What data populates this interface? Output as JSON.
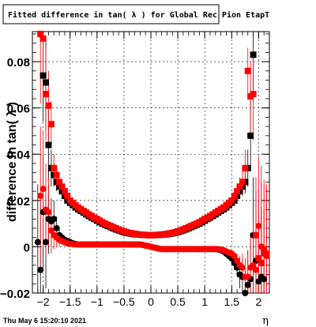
{
  "title": "Fitted difference in tan( λ ) for Global Rec Pion EtapT",
  "footer_timestamp": "Thu May  6 15:20:10 2021",
  "chart_data": {
    "type": "scatter",
    "title": "Fitted difference in tan( λ ) for Global Rec Pion EtapT",
    "xlabel": "η",
    "ylabel": "difference in tan( λ )",
    "xlim": [
      -2.2,
      2.2
    ],
    "ylim": [
      -0.02,
      0.093
    ],
    "grid": true,
    "x_ticks": [
      -2,
      -1.5,
      -1,
      -0.5,
      0,
      0.5,
      1,
      1.5,
      2
    ],
    "x_tick_labels": [
      "−2",
      "−1.5",
      "−1",
      "−0.5",
      "0",
      "0.5",
      "1",
      "1.5",
      "2"
    ],
    "y_ticks": [
      -0.02,
      0,
      0.02,
      0.04,
      0.06,
      0.08
    ],
    "y_tick_labels": [
      "−0.02",
      "0",
      "0.02",
      "0.04",
      "0.06",
      "0.08"
    ],
    "series": [
      {
        "color": "#000000",
        "marker": "circle",
        "x": [
          -2.1,
          -2.05,
          -2.0,
          -1.95,
          -1.9,
          -1.85,
          -1.8,
          -1.75,
          -1.7,
          -1.65,
          -1.6,
          -1.55,
          -1.5,
          -1.45,
          -1.4,
          -1.35,
          -1.3,
          -1.25,
          -1.2,
          -1.15,
          -1.1,
          -1.05,
          -1.0,
          -0.95,
          -0.9,
          -0.85,
          -0.8,
          -0.75,
          -0.7,
          -0.65,
          -0.6,
          -0.55,
          -0.5,
          -0.45,
          -0.4,
          -0.35,
          -0.3,
          -0.25,
          -0.2,
          -0.15,
          -0.1,
          -0.05,
          0.0,
          0.05,
          0.1,
          0.15,
          0.2,
          0.25,
          0.3,
          0.35,
          0.4,
          0.45,
          0.5,
          0.55,
          0.6,
          0.65,
          0.7,
          0.75,
          0.8,
          0.85,
          0.9,
          0.95,
          1.0,
          1.05,
          1.1,
          1.15,
          1.2,
          1.25,
          1.3,
          1.35,
          1.4,
          1.45,
          1.5,
          1.55,
          1.6,
          1.65,
          1.7,
          1.75,
          1.8,
          1.85,
          1.9,
          1.95,
          2.0,
          2.05,
          2.1
        ],
        "y": [
          0.002,
          -0.01,
          0.015,
          0.002,
          0.012,
          0.011,
          0.012,
          0.008,
          0.005,
          0.004,
          0.003,
          0.0025,
          0.002,
          0.0015,
          0.0012,
          0.001,
          0.001,
          0.001,
          0.001,
          0.001,
          0.001,
          0.001,
          0.001,
          0.001,
          0.001,
          0.001,
          0.001,
          0.001,
          0.001,
          0.001,
          0.001,
          0.001,
          0.001,
          0.001,
          0.001,
          0.001,
          0.001,
          0.001,
          0.001,
          0.0008,
          0.0005,
          0.0003,
          0.0,
          -0.0003,
          -0.0005,
          -0.0008,
          -0.001,
          -0.001,
          -0.001,
          -0.001,
          -0.001,
          -0.001,
          -0.001,
          -0.001,
          -0.001,
          -0.001,
          -0.001,
          -0.001,
          -0.001,
          -0.001,
          -0.001,
          -0.001,
          -0.001,
          -0.001,
          -0.001,
          -0.001,
          -0.001,
          -0.0012,
          -0.0015,
          -0.002,
          -0.003,
          -0.004,
          -0.005,
          -0.007,
          -0.009,
          -0.012,
          -0.013,
          -0.02,
          -0.0165,
          -0.014,
          0.005,
          -0.006,
          -0.015,
          -0.013,
          -0.014
        ],
        "yerr": [
          0.025,
          0.03,
          0.025,
          0.02,
          0.015,
          0.01,
          0.008,
          0.005,
          0.003,
          0.002,
          0.0015,
          0.001,
          0.001,
          0.001,
          0.001,
          0.001,
          0.001,
          0.001,
          0.001,
          0.001,
          0.001,
          0.001,
          0.001,
          0.001,
          0.001,
          0.001,
          0.001,
          0.001,
          0.001,
          0.001,
          0.001,
          0.001,
          0.001,
          0.001,
          0.001,
          0.001,
          0.001,
          0.001,
          0.001,
          0.001,
          0.001,
          0.001,
          0.001,
          0.001,
          0.001,
          0.001,
          0.001,
          0.001,
          0.001,
          0.001,
          0.001,
          0.001,
          0.001,
          0.001,
          0.001,
          0.001,
          0.001,
          0.001,
          0.001,
          0.001,
          0.001,
          0.001,
          0.001,
          0.001,
          0.001,
          0.001,
          0.001,
          0.001,
          0.001,
          0.001,
          0.001,
          0.0015,
          0.002,
          0.003,
          0.004,
          0.006,
          0.008,
          0.01,
          0.015,
          0.02,
          0.025,
          0.03,
          0.035,
          0.03,
          0.03
        ]
      },
      {
        "color": "#000000",
        "marker": "square",
        "x": [
          -2.0,
          -1.95,
          -1.9,
          -1.85,
          -1.8,
          -1.75,
          -1.7,
          -1.65,
          -1.6,
          -1.55,
          -1.5,
          -1.45,
          -1.4,
          -1.35,
          -1.3,
          -1.25,
          -1.2,
          -1.15,
          -1.1,
          -1.05,
          -1.0,
          -0.95,
          -0.9,
          -0.85,
          -0.8,
          -0.75,
          -0.7,
          -0.65,
          -0.6,
          -0.55,
          -0.5,
          -0.45,
          -0.4,
          -0.35,
          -0.3,
          -0.25,
          -0.2,
          -0.15,
          -0.1,
          -0.05,
          0.0,
          0.05,
          0.1,
          0.15,
          0.2,
          0.25,
          0.3,
          0.35,
          0.4,
          0.45,
          0.5,
          0.55,
          0.6,
          0.65,
          0.7,
          0.75,
          0.8,
          0.85,
          0.9,
          0.95,
          1.0,
          1.05,
          1.1,
          1.15,
          1.2,
          1.25,
          1.3,
          1.35,
          1.4,
          1.45,
          1.5,
          1.55,
          1.6,
          1.65,
          1.7,
          1.75,
          1.8,
          1.85,
          1.9
        ],
        "y": [
          0.074,
          0.071,
          0.044,
          0.034,
          0.031,
          0.028,
          0.026,
          0.024,
          0.022,
          0.02,
          0.019,
          0.018,
          0.017,
          0.0162,
          0.0155,
          0.0148,
          0.014,
          0.0133,
          0.0126,
          0.012,
          0.0113,
          0.0106,
          0.01,
          0.0095,
          0.009,
          0.0085,
          0.008,
          0.0075,
          0.0071,
          0.0067,
          0.0063,
          0.006,
          0.0058,
          0.0056,
          0.0054,
          0.0053,
          0.0052,
          0.0051,
          0.0051,
          0.005,
          0.005,
          0.005,
          0.0051,
          0.0051,
          0.0052,
          0.0053,
          0.0054,
          0.0056,
          0.0058,
          0.006,
          0.0063,
          0.0067,
          0.0071,
          0.0075,
          0.008,
          0.0085,
          0.009,
          0.0095,
          0.01,
          0.0106,
          0.0113,
          0.012,
          0.0126,
          0.0133,
          0.014,
          0.0148,
          0.0155,
          0.0162,
          0.017,
          0.018,
          0.019,
          0.02,
          0.022,
          0.024,
          0.026,
          0.028,
          0.034,
          0.048,
          0.083
        ],
        "yerr": [
          0.02,
          0.02,
          0.015,
          0.008,
          0.005,
          0.004,
          0.003,
          0.002,
          0.0015,
          0.001,
          0.001,
          0.001,
          0.001,
          0.001,
          0.001,
          0.001,
          0.001,
          0.001,
          0.001,
          0.001,
          0.001,
          0.001,
          0.001,
          0.001,
          0.001,
          0.001,
          0.001,
          0.001,
          0.001,
          0.001,
          0.001,
          0.001,
          0.001,
          0.001,
          0.001,
          0.001,
          0.001,
          0.001,
          0.001,
          0.001,
          0.001,
          0.001,
          0.001,
          0.001,
          0.001,
          0.001,
          0.001,
          0.001,
          0.001,
          0.001,
          0.001,
          0.001,
          0.001,
          0.001,
          0.001,
          0.001,
          0.001,
          0.001,
          0.001,
          0.001,
          0.001,
          0.001,
          0.001,
          0.001,
          0.001,
          0.001,
          0.001,
          0.001,
          0.001,
          0.001,
          0.001,
          0.0015,
          0.002,
          0.003,
          0.004,
          0.005,
          0.008,
          0.015,
          0.02
        ]
      },
      {
        "color": "#ff0000",
        "marker": "circle",
        "x": [
          -2.05,
          -2.0,
          -1.95,
          -1.9,
          -1.85,
          -1.8,
          -1.75,
          -1.7,
          -1.65,
          -1.6,
          -1.55,
          -1.5,
          -1.45,
          -1.4,
          -1.35,
          -1.3,
          -1.25,
          -1.2,
          -1.15,
          -1.1,
          -1.05,
          -1.0,
          -0.95,
          -0.9,
          -0.85,
          -0.8,
          -0.75,
          -0.7,
          -0.65,
          -0.6,
          -0.55,
          -0.5,
          -0.45,
          -0.4,
          -0.35,
          -0.3,
          -0.25,
          -0.2,
          -0.15,
          -0.1,
          -0.05,
          0.0,
          0.05,
          0.1,
          0.15,
          0.2,
          0.25,
          0.3,
          0.35,
          0.4,
          0.45,
          0.5,
          0.55,
          0.6,
          0.65,
          0.7,
          0.75,
          0.8,
          0.85,
          0.9,
          0.95,
          1.0,
          1.05,
          1.1,
          1.15,
          1.2,
          1.25,
          1.3,
          1.35,
          1.4,
          1.45,
          1.5,
          1.55,
          1.6,
          1.65,
          1.7,
          1.75,
          1.8,
          1.85,
          1.9,
          1.95,
          2.0,
          2.05,
          2.1,
          2.15
        ],
        "y": [
          0.022,
          0.025,
          0.016,
          0.015,
          0.007,
          0.005,
          0.004,
          0.003,
          0.0025,
          0.002,
          0.0015,
          0.0013,
          0.0011,
          0.001,
          0.001,
          0.001,
          0.001,
          0.001,
          0.001,
          0.001,
          0.001,
          0.001,
          0.001,
          0.001,
          0.001,
          0.001,
          0.001,
          0.001,
          0.001,
          0.001,
          0.001,
          0.001,
          0.001,
          0.001,
          0.001,
          0.001,
          0.001,
          0.001,
          0.0008,
          0.0005,
          0.0003,
          0.0,
          -0.0003,
          -0.0005,
          -0.0008,
          -0.001,
          -0.001,
          -0.001,
          -0.001,
          -0.001,
          -0.001,
          -0.001,
          -0.001,
          -0.001,
          -0.001,
          -0.001,
          -0.001,
          -0.001,
          -0.001,
          -0.001,
          -0.001,
          -0.001,
          -0.001,
          -0.001,
          -0.001,
          -0.001,
          -0.001,
          -0.0012,
          -0.0015,
          -0.002,
          -0.0025,
          -0.003,
          -0.004,
          -0.006,
          -0.008,
          -0.009,
          -0.013,
          -0.013,
          -0.009,
          -0.008,
          -0.01,
          0.009,
          0.0,
          -0.003,
          -0.004
        ],
        "yerr": [
          0.03,
          0.025,
          0.02,
          0.015,
          0.01,
          0.006,
          0.004,
          0.003,
          0.002,
          0.0015,
          0.001,
          0.001,
          0.001,
          0.001,
          0.001,
          0.001,
          0.001,
          0.001,
          0.001,
          0.001,
          0.001,
          0.001,
          0.001,
          0.001,
          0.001,
          0.001,
          0.001,
          0.001,
          0.001,
          0.001,
          0.001,
          0.001,
          0.001,
          0.001,
          0.001,
          0.001,
          0.001,
          0.001,
          0.001,
          0.001,
          0.001,
          0.001,
          0.001,
          0.001,
          0.001,
          0.001,
          0.001,
          0.001,
          0.001,
          0.001,
          0.001,
          0.001,
          0.001,
          0.001,
          0.001,
          0.001,
          0.001,
          0.001,
          0.001,
          0.001,
          0.001,
          0.001,
          0.001,
          0.001,
          0.001,
          0.001,
          0.001,
          0.001,
          0.001,
          0.001,
          0.001,
          0.0015,
          0.002,
          0.003,
          0.004,
          0.006,
          0.008,
          0.01,
          0.015,
          0.02,
          0.025,
          0.03,
          0.035,
          0.03,
          0.03
        ]
      },
      {
        "color": "#ff0000",
        "marker": "square",
        "x": [
          -2.05,
          -2.0,
          -1.95,
          -1.9,
          -1.85,
          -1.8,
          -1.75,
          -1.7,
          -1.65,
          -1.6,
          -1.55,
          -1.5,
          -1.45,
          -1.4,
          -1.35,
          -1.3,
          -1.25,
          -1.2,
          -1.15,
          -1.1,
          -1.05,
          -1.0,
          -0.95,
          -0.9,
          -0.85,
          -0.8,
          -0.75,
          -0.7,
          -0.65,
          -0.6,
          -0.55,
          -0.5,
          -0.45,
          -0.4,
          -0.35,
          -0.3,
          -0.25,
          -0.2,
          -0.15,
          -0.1,
          -0.05,
          0.0,
          0.05,
          0.1,
          0.15,
          0.2,
          0.25,
          0.3,
          0.35,
          0.4,
          0.45,
          0.5,
          0.55,
          0.6,
          0.65,
          0.7,
          0.75,
          0.8,
          0.85,
          0.9,
          0.95,
          1.0,
          1.05,
          1.1,
          1.15,
          1.2,
          1.25,
          1.3,
          1.35,
          1.4,
          1.45,
          1.5,
          1.55,
          1.6,
          1.65,
          1.7,
          1.75,
          1.8,
          1.85,
          1.9,
          1.95,
          2.0,
          2.05,
          2.1,
          2.15
        ],
        "y": [
          0.092,
          0.09,
          0.066,
          0.061,
          0.053,
          0.034,
          0.031,
          0.028,
          0.026,
          0.024,
          0.022,
          0.02,
          0.019,
          0.018,
          0.017,
          0.0162,
          0.0155,
          0.0148,
          0.014,
          0.0133,
          0.0126,
          0.012,
          0.0113,
          0.0106,
          0.01,
          0.0095,
          0.009,
          0.0085,
          0.008,
          0.0075,
          0.0071,
          0.0067,
          0.0063,
          0.006,
          0.0058,
          0.0056,
          0.0054,
          0.0053,
          0.0052,
          0.0051,
          0.005,
          0.005,
          0.005,
          0.0051,
          0.0052,
          0.0053,
          0.0054,
          0.0056,
          0.0058,
          0.006,
          0.0063,
          0.0067,
          0.0071,
          0.0075,
          0.008,
          0.0085,
          0.009,
          0.0095,
          0.01,
          0.0106,
          0.0113,
          0.012,
          0.0126,
          0.0133,
          0.014,
          0.0148,
          0.0155,
          0.0162,
          0.017,
          0.018,
          0.019,
          0.02,
          0.022,
          0.024,
          0.026,
          0.028,
          0.034,
          0.076,
          0.065,
          0.066,
          0.005,
          -0.005,
          -0.007,
          -0.001,
          -0.003
        ],
        "yerr": [
          0.03,
          0.025,
          0.02,
          0.015,
          0.01,
          0.006,
          0.004,
          0.003,
          0.002,
          0.0015,
          0.001,
          0.001,
          0.001,
          0.001,
          0.001,
          0.001,
          0.001,
          0.001,
          0.001,
          0.001,
          0.001,
          0.001,
          0.001,
          0.001,
          0.001,
          0.001,
          0.001,
          0.001,
          0.001,
          0.001,
          0.001,
          0.001,
          0.001,
          0.001,
          0.001,
          0.001,
          0.001,
          0.001,
          0.001,
          0.001,
          0.001,
          0.001,
          0.001,
          0.001,
          0.001,
          0.001,
          0.001,
          0.001,
          0.001,
          0.001,
          0.001,
          0.001,
          0.001,
          0.001,
          0.001,
          0.001,
          0.001,
          0.001,
          0.001,
          0.001,
          0.001,
          0.001,
          0.001,
          0.001,
          0.001,
          0.001,
          0.001,
          0.001,
          0.001,
          0.001,
          0.001,
          0.0015,
          0.002,
          0.003,
          0.004,
          0.006,
          0.008,
          0.01,
          0.015,
          0.02,
          0.025,
          0.03,
          0.035,
          0.03,
          0.03
        ]
      }
    ]
  }
}
